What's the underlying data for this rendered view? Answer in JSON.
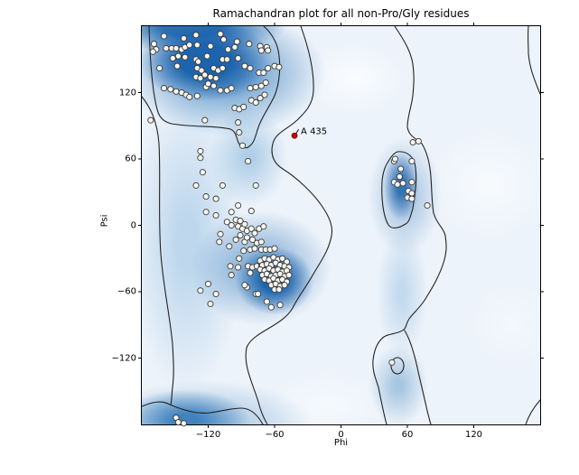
{
  "figure": {
    "title": "Ramachandran plot for all non-Pro/Gly residues"
  },
  "colors": {
    "density_base": "#edf3fa",
    "density_core": "#1760ab",
    "contour_line": "#222222",
    "marker_fill": "#f7f6f0",
    "marker_edge": "#3a3a3a",
    "outlier_marker": "#d40000",
    "spine": "#000000"
  },
  "chart_data": {
    "type": "scatter",
    "title": "Ramachandran plot for all non-Pro/Gly residues",
    "xlabel": "Phi",
    "ylabel": "Psi",
    "xlim": [
      -180,
      180
    ],
    "ylim": [
      -180,
      180
    ],
    "x_ticks": [
      -120,
      -60,
      0,
      60,
      120
    ],
    "y_ticks": [
      -120,
      -60,
      0,
      60,
      120
    ],
    "x_tick_labels": [
      "−120",
      "−60",
      "0",
      "60",
      "120"
    ],
    "y_tick_labels": [
      "−120",
      "−60",
      "0",
      "60",
      "120"
    ],
    "grid": false,
    "legend": "none",
    "background": "blue kernel-density shading (favored regions) with black contour outlines",
    "series": [
      {
        "name": "non-Pro/Gly residues",
        "marker": "circle",
        "marker_radius_px": 3.1,
        "fill": "#f7f6f0",
        "edge": "#3a3a3a",
        "points": [
          [
            -160,
            171
          ],
          [
            -142,
            169
          ],
          [
            -131,
            172
          ],
          [
            -109,
            173
          ],
          [
            -106,
            168
          ],
          [
            -94,
            166
          ],
          [
            -83,
            164
          ],
          [
            -73,
            162
          ],
          [
            -67,
            161
          ],
          [
            -169,
            164
          ],
          [
            -167,
            159
          ],
          [
            -170,
            157
          ],
          [
            -158,
            160
          ],
          [
            -153,
            160
          ],
          [
            -149,
            160
          ],
          [
            -144,
            159
          ],
          [
            -141,
            161
          ],
          [
            -137,
            163
          ],
          [
            -130,
            163
          ],
          [
            -118,
            162
          ],
          [
            -102,
            159
          ],
          [
            -96,
            161
          ],
          [
            -72,
            158
          ],
          [
            -66,
            158
          ],
          [
            -152,
            151
          ],
          [
            -147,
            153
          ],
          [
            -141,
            152
          ],
          [
            -131,
            150
          ],
          [
            -129,
            148
          ],
          [
            -121,
            153
          ],
          [
            -107,
            150
          ],
          [
            -103,
            150
          ],
          [
            -93,
            151
          ],
          [
            -87,
            144
          ],
          [
            -82,
            142
          ],
          [
            -164,
            142
          ],
          [
            -148,
            144
          ],
          [
            -130,
            142
          ],
          [
            -126,
            140
          ],
          [
            -115,
            142
          ],
          [
            -111,
            140
          ],
          [
            -107,
            142
          ],
          [
            -131,
            134
          ],
          [
            -127,
            133
          ],
          [
            -123,
            136
          ],
          [
            -118,
            134
          ],
          [
            -113,
            133
          ],
          [
            -74,
            138
          ],
          [
            -70,
            138
          ],
          [
            -66,
            142
          ],
          [
            -60,
            144
          ],
          [
            -56,
            143
          ],
          [
            -160,
            124
          ],
          [
            -154,
            123
          ],
          [
            -149,
            121
          ],
          [
            -144,
            120
          ],
          [
            -140,
            118
          ],
          [
            -137,
            116
          ],
          [
            -130,
            117
          ],
          [
            -122,
            125
          ],
          [
            -120,
            128
          ],
          [
            -115,
            126
          ],
          [
            -109,
            122
          ],
          [
            -103,
            122
          ],
          [
            -99,
            124
          ],
          [
            -96,
            106
          ],
          [
            -92,
            105
          ],
          [
            -88,
            107
          ],
          [
            -81,
            113
          ],
          [
            -77,
            111
          ],
          [
            -73,
            115
          ],
          [
            -69,
            118
          ],
          [
            -82,
            124
          ],
          [
            -77,
            125
          ],
          [
            -72,
            126
          ],
          [
            -68,
            129
          ],
          [
            -123,
            95
          ],
          [
            -93,
            93
          ],
          [
            -172,
            95
          ],
          [
            -92,
            84
          ],
          [
            -89,
            72
          ],
          [
            -127,
            67
          ],
          [
            -127,
            61
          ],
          [
            -84,
            58
          ],
          [
            -125,
            48
          ],
          [
            -131,
            36
          ],
          [
            -107,
            36
          ],
          [
            -77,
            36
          ],
          [
            -122,
            26
          ],
          [
            -113,
            24
          ],
          [
            -93,
            18
          ],
          [
            -122,
            12
          ],
          [
            -113,
            9
          ],
          [
            -99,
            12
          ],
          [
            -81,
            13
          ],
          [
            -103,
            3
          ],
          [
            -99,
            0
          ],
          [
            -95,
            5
          ],
          [
            -91,
            4
          ],
          [
            -93,
            -1
          ],
          [
            -89,
            -3
          ],
          [
            -87,
            1
          ],
          [
            -85,
            -5
          ],
          [
            -81,
            -3
          ],
          [
            -78,
            -7
          ],
          [
            -74,
            -3
          ],
          [
            -70,
            -1
          ],
          [
            -109,
            -8
          ],
          [
            -91,
            -9
          ],
          [
            -110,
            -15
          ],
          [
            -101,
            -19
          ],
          [
            -95,
            -13
          ],
          [
            -87,
            -15
          ],
          [
            -85,
            -11
          ],
          [
            -80,
            -13
          ],
          [
            -76,
            -16
          ],
          [
            -72,
            -15
          ],
          [
            -92,
            -30
          ],
          [
            -88,
            -23
          ],
          [
            -82,
            -22
          ],
          [
            -78,
            -21
          ],
          [
            -72,
            -22
          ],
          [
            -68,
            -22
          ],
          [
            -64,
            -22
          ],
          [
            -60,
            -21
          ],
          [
            -100,
            -37
          ],
          [
            -93,
            -38
          ],
          [
            -84,
            -37
          ],
          [
            -80,
            -38
          ],
          [
            -76,
            -37
          ],
          [
            -72,
            -37
          ],
          [
            -99,
            -45
          ],
          [
            -82,
            -43
          ],
          [
            -120,
            -53
          ],
          [
            -127,
            -59
          ],
          [
            -113,
            -62
          ],
          [
            -118,
            -71
          ],
          [
            -85,
            -56
          ],
          [
            -77,
            -62
          ],
          [
            -73,
            -32
          ],
          [
            -69,
            -30
          ],
          [
            -65,
            -31
          ],
          [
            -61,
            -29
          ],
          [
            -57,
            -31
          ],
          [
            -53,
            -30
          ],
          [
            -49,
            -33
          ],
          [
            -71,
            -36
          ],
          [
            -67,
            -35
          ],
          [
            -63,
            -36
          ],
          [
            -59,
            -34
          ],
          [
            -55,
            -36
          ],
          [
            -51,
            -37
          ],
          [
            -47,
            -38
          ],
          [
            -73,
            -40
          ],
          [
            -69,
            -41
          ],
          [
            -65,
            -39
          ],
          [
            -61,
            -41
          ],
          [
            -57,
            -40
          ],
          [
            -53,
            -42
          ],
          [
            -49,
            -41
          ],
          [
            -71,
            -45
          ],
          [
            -67,
            -44
          ],
          [
            -63,
            -46
          ],
          [
            -59,
            -45
          ],
          [
            -55,
            -44
          ],
          [
            -51,
            -46
          ],
          [
            -47,
            -45
          ],
          [
            -69,
            -49
          ],
          [
            -65,
            -50
          ],
          [
            -61,
            -48
          ],
          [
            -57,
            -50
          ],
          [
            -53,
            -49
          ],
          [
            -49,
            -51
          ],
          [
            -63,
            -54
          ],
          [
            -59,
            -53
          ],
          [
            -55,
            -55
          ],
          [
            -51,
            -54
          ],
          [
            -60,
            -58
          ],
          [
            -56,
            -58
          ],
          [
            -87,
            -54
          ],
          [
            -75,
            -62
          ],
          [
            -67,
            -69
          ],
          [
            -55,
            -72
          ],
          [
            -63,
            -74
          ],
          [
            65,
            75
          ],
          [
            70,
            76
          ],
          [
            48,
            58
          ],
          [
            49,
            60
          ],
          [
            64,
            58
          ],
          [
            54,
            51
          ],
          [
            53,
            44
          ],
          [
            48,
            39
          ],
          [
            51,
            37
          ],
          [
            56,
            38
          ],
          [
            64,
            39
          ],
          [
            61,
            31
          ],
          [
            64,
            29
          ],
          [
            60,
            25
          ],
          [
            64,
            24
          ],
          [
            78,
            18
          ],
          [
            46,
            -124
          ],
          [
            -149,
            -174
          ],
          [
            -147,
            -178
          ],
          [
            -142,
            -179
          ]
        ]
      }
    ],
    "annotation": {
      "label": "A 435",
      "phi": -42,
      "psi": 81,
      "marker": "circle",
      "fill": "#d40000",
      "edge": "#550000",
      "text_color": "#000000"
    }
  }
}
